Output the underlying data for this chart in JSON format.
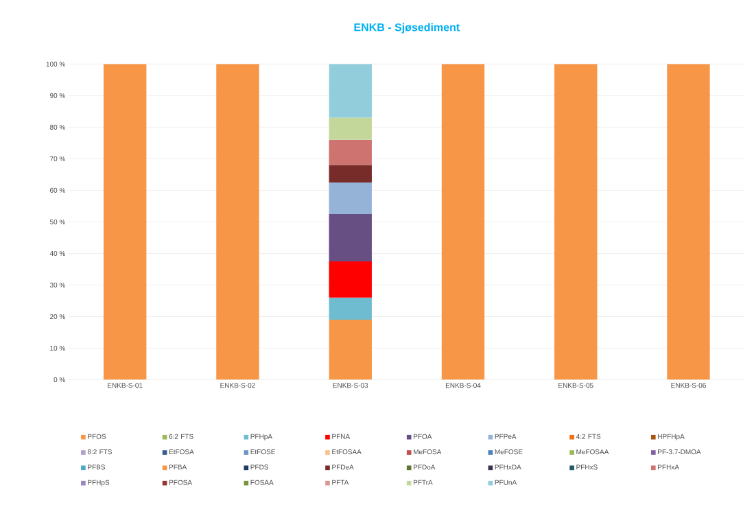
{
  "chart_data": {
    "type": "bar",
    "stacked": true,
    "title": "ENKB - Sjøsediment",
    "categories": [
      "ENKB-S-01",
      "ENKB-S-02",
      "ENKB-S-03",
      "ENKB-S-04",
      "ENKB-S-05",
      "ENKB-S-06"
    ],
    "ylim": [
      0,
      100
    ],
    "yticks": [
      {
        "value": 0,
        "label": "0 %"
      },
      {
        "value": 10,
        "label": "10 %"
      },
      {
        "value": 20,
        "label": "20 %"
      },
      {
        "value": 30,
        "label": "30 %"
      },
      {
        "value": 40,
        "label": "40 %"
      },
      {
        "value": 50,
        "label": "50 %"
      },
      {
        "value": 60,
        "label": "60 %"
      },
      {
        "value": 70,
        "label": "70 %"
      },
      {
        "value": 80,
        "label": "80 %"
      },
      {
        "value": 90,
        "label": "90 %"
      },
      {
        "value": 100,
        "label": "100 %"
      }
    ],
    "grid": "y",
    "legend": "bottom",
    "series": [
      {
        "name": "PFOS",
        "color": "#f79646",
        "values": [
          100,
          100,
          19,
          100,
          100,
          100
        ]
      },
      {
        "name": "6:2 FTS",
        "color": "#9bbb59",
        "values": [
          null,
          null,
          null,
          null,
          null,
          null
        ]
      },
      {
        "name": "PFHpA",
        "color": "#6fbcd0",
        "values": [
          null,
          null,
          7,
          null,
          null,
          null
        ]
      },
      {
        "name": "PFNA",
        "color": "#ff0000",
        "values": [
          null,
          null,
          11.5,
          null,
          null,
          null
        ]
      },
      {
        "name": "PFOA",
        "color": "#674f83",
        "values": [
          null,
          null,
          15,
          null,
          null,
          null
        ]
      },
      {
        "name": "PFPeA",
        "color": "#95b3d7",
        "values": [
          null,
          null,
          10,
          null,
          null,
          null
        ]
      },
      {
        "name": "4:2 FTS",
        "color": "#f26f0f",
        "values": [
          null,
          null,
          null,
          null,
          null,
          null
        ]
      },
      {
        "name": "HPFHpA",
        "color": "#a6570f",
        "values": [
          null,
          null,
          null,
          null,
          null,
          null
        ]
      },
      {
        "name": "8:2 FTS",
        "color": "#b3a2c7",
        "values": [
          null,
          null,
          null,
          null,
          null,
          null
        ]
      },
      {
        "name": "EtFOSA",
        "color": "#376092",
        "values": [
          null,
          null,
          null,
          null,
          null,
          null
        ]
      },
      {
        "name": "EtFOSE",
        "color": "#7094c8",
        "values": [
          null,
          null,
          null,
          null,
          null,
          null
        ]
      },
      {
        "name": "EtFOSAA",
        "color": "#fac090",
        "values": [
          null,
          null,
          null,
          null,
          null,
          null
        ]
      },
      {
        "name": "MeFOSA",
        "color": "#c0504d",
        "values": [
          null,
          null,
          null,
          null,
          null,
          null
        ]
      },
      {
        "name": "MeFOSE",
        "color": "#4f81bd",
        "values": [
          null,
          null,
          null,
          null,
          null,
          null
        ]
      },
      {
        "name": "MeFOSAA",
        "color": "#9bbb59",
        "values": [
          null,
          null,
          null,
          null,
          null,
          null
        ]
      },
      {
        "name": "PF-3.7-DMOA",
        "color": "#8064a2",
        "values": [
          null,
          null,
          null,
          null,
          null,
          null
        ]
      },
      {
        "name": "PFBS",
        "color": "#4bacc6",
        "values": [
          null,
          null,
          null,
          null,
          null,
          null
        ]
      },
      {
        "name": "PFBA",
        "color": "#f79646",
        "values": [
          null,
          null,
          null,
          null,
          null,
          null
        ]
      },
      {
        "name": "PFDS",
        "color": "#1f3864",
        "values": [
          null,
          null,
          null,
          null,
          null,
          null
        ]
      },
      {
        "name": "PFDeA",
        "color": "#772c2a",
        "values": [
          null,
          null,
          5.5,
          null,
          null,
          null
        ]
      },
      {
        "name": "PFDoA",
        "color": "#5f7530",
        "values": [
          null,
          null,
          null,
          null,
          null,
          null
        ]
      },
      {
        "name": "PFHxDA",
        "color": "#403152",
        "values": [
          null,
          null,
          null,
          null,
          null,
          null
        ]
      },
      {
        "name": "PFHxS",
        "color": "#215968",
        "values": [
          null,
          null,
          null,
          null,
          null,
          null
        ]
      },
      {
        "name": "PFHxA",
        "color": "#cf7370",
        "values": [
          null,
          null,
          8,
          null,
          null,
          null
        ]
      },
      {
        "name": "PFHpS",
        "color": "#9c85c0",
        "values": [
          null,
          null,
          null,
          null,
          null,
          null
        ]
      },
      {
        "name": "PFOSA",
        "color": "#953735",
        "values": [
          null,
          null,
          null,
          null,
          null,
          null
        ]
      },
      {
        "name": "FOSAA",
        "color": "#77933c",
        "values": [
          null,
          null,
          null,
          null,
          null,
          null
        ]
      },
      {
        "name": "PFTA",
        "color": "#d99694",
        "values": [
          null,
          null,
          null,
          null,
          null,
          null
        ]
      },
      {
        "name": "PFTrA",
        "color": "#c4d79b",
        "values": [
          null,
          null,
          7,
          null,
          null,
          null
        ]
      },
      {
        "name": "PFUnA",
        "color": "#92cddc",
        "values": [
          null,
          null,
          17,
          null,
          null,
          null
        ]
      }
    ]
  }
}
